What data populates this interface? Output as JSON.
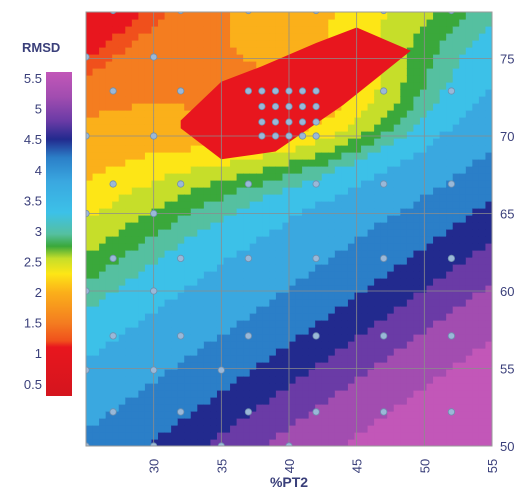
{
  "chart_data": {
    "type": "heatmap",
    "title": "",
    "xlabel": "%PT2",
    "ylabel": "",
    "xlim": [
      25,
      55
    ],
    "ylim": [
      50,
      78
    ],
    "x_ticks": [
      "30",
      "35",
      "40",
      "45",
      "50",
      "55"
    ],
    "y_ticks": [
      "50",
      "55",
      "60",
      "65",
      "70",
      "75"
    ],
    "grid": true,
    "colorbar": {
      "title": "RMSD",
      "range": [
        0.3,
        5.6
      ],
      "ticks": [
        "0.5",
        "1",
        "1.5",
        "2",
        "2.5",
        "3",
        "3.5",
        "4",
        "4.5",
        "5",
        "5.5"
      ],
      "placement": "left",
      "stops": [
        {
          "value": 0.3,
          "color": "#d4151e"
        },
        {
          "value": 1.1,
          "color": "#e8161e"
        },
        {
          "value": 1.2,
          "color": "#f0501c"
        },
        {
          "value": 1.5,
          "color": "#f47d20"
        },
        {
          "value": 2.0,
          "color": "#fbb01a"
        },
        {
          "value": 2.3,
          "color": "#fde616"
        },
        {
          "value": 2.55,
          "color": "#c6de2a"
        },
        {
          "value": 2.75,
          "color": "#3aa83b"
        },
        {
          "value": 2.95,
          "color": "#55c0a0"
        },
        {
          "value": 3.3,
          "color": "#3cc1e8"
        },
        {
          "value": 3.8,
          "color": "#3aa8e0"
        },
        {
          "value": 4.2,
          "color": "#2b7fc8"
        },
        {
          "value": 4.5,
          "color": "#222a8e"
        },
        {
          "value": 4.8,
          "color": "#6a3ba6"
        },
        {
          "value": 5.2,
          "color": "#a24db0"
        },
        {
          "value": 5.6,
          "color": "#c257b8"
        }
      ]
    },
    "min_region": [
      [
        32,
        71
      ],
      [
        35,
        73.5
      ],
      [
        38,
        74.5
      ],
      [
        42,
        76
      ],
      [
        45,
        77
      ],
      [
        49,
        75.5
      ],
      [
        44,
        72
      ],
      [
        39,
        69
      ],
      [
        35,
        68.5
      ],
      [
        32,
        70.5
      ]
    ],
    "sample_points": [
      [
        27,
        78.1
      ],
      [
        32,
        78.1
      ],
      [
        37,
        78.1
      ],
      [
        42,
        78.1
      ],
      [
        47,
        78.1
      ],
      [
        52,
        78.1
      ],
      [
        25,
        75.1
      ],
      [
        30,
        75.1
      ],
      [
        27,
        72.9
      ],
      [
        32,
        72.9
      ],
      [
        37,
        72.9
      ],
      [
        42,
        72.9
      ],
      [
        47,
        72.9
      ],
      [
        52,
        72.9
      ],
      [
        38,
        72.9
      ],
      [
        39,
        72.9
      ],
      [
        40,
        72.9
      ],
      [
        41,
        72.9
      ],
      [
        38,
        71.9
      ],
      [
        39,
        71.9
      ],
      [
        40,
        71.9
      ],
      [
        41,
        71.9
      ],
      [
        42,
        71.9
      ],
      [
        38,
        70.9
      ],
      [
        39,
        70.9
      ],
      [
        40,
        70.9
      ],
      [
        41,
        70.9
      ],
      [
        42,
        70.9
      ],
      [
        38,
        70.0
      ],
      [
        39,
        70.0
      ],
      [
        40,
        70.0
      ],
      [
        41,
        70.0
      ],
      [
        42,
        70.0
      ],
      [
        25,
        70.0
      ],
      [
        30,
        70.0
      ],
      [
        27,
        66.9
      ],
      [
        32,
        66.9
      ],
      [
        37,
        66.9
      ],
      [
        42,
        66.9
      ],
      [
        47,
        66.9
      ],
      [
        52,
        66.9
      ],
      [
        25,
        65.0
      ],
      [
        30,
        65.0
      ],
      [
        27,
        62.1
      ],
      [
        32,
        62.1
      ],
      [
        37,
        62.1
      ],
      [
        42,
        62.1
      ],
      [
        47,
        62.1
      ],
      [
        52,
        62.1
      ],
      [
        25,
        60.0
      ],
      [
        30,
        60.0
      ],
      [
        27,
        57.1
      ],
      [
        32,
        57.1
      ],
      [
        37,
        57.1
      ],
      [
        42,
        57.1
      ],
      [
        47,
        57.1
      ],
      [
        52,
        57.1
      ],
      [
        25,
        54.9
      ],
      [
        30,
        54.9
      ],
      [
        35,
        54.9
      ],
      [
        27,
        52.2
      ],
      [
        32,
        52.2
      ],
      [
        37,
        52.2
      ],
      [
        42,
        52.2
      ],
      [
        47,
        52.2
      ],
      [
        52,
        52.2
      ],
      [
        25,
        50.0
      ],
      [
        30,
        50.0
      ],
      [
        35,
        50.0
      ],
      [
        40,
        50.0
      ]
    ]
  }
}
